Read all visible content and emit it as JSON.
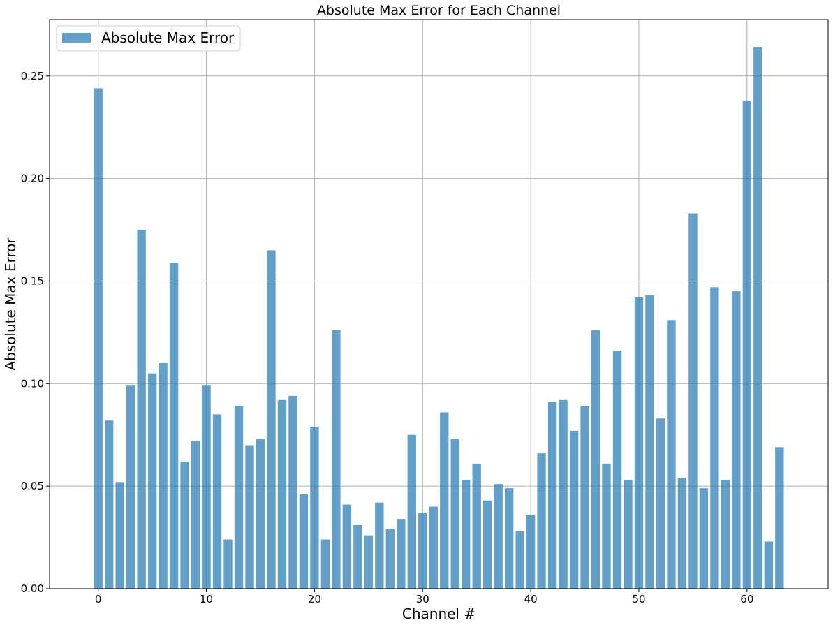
{
  "colors": {
    "bar": "#1f77b4",
    "bar_opacity": 0.7,
    "grid": "#b0b0b0"
  },
  "chart_data": {
    "type": "bar",
    "title": "Absolute Max Error for Each Channel",
    "xlabel": "Channel #",
    "ylabel": "Absolute Max Error",
    "legend": {
      "label": "Absolute Max Error",
      "position": "top-left"
    },
    "grid": true,
    "xlim": [
      -4.5,
      67.5
    ],
    "ylim": [
      0,
      0.2775
    ],
    "xticks": [
      0,
      10,
      20,
      30,
      40,
      50,
      60
    ],
    "xtick_labels": [
      "0",
      "10",
      "20",
      "30",
      "40",
      "50",
      "60"
    ],
    "yticks": [
      0,
      0.05,
      0.1,
      0.15,
      0.2,
      0.25
    ],
    "ytick_labels": [
      "0.00",
      "0.05",
      "0.10",
      "0.15",
      "0.20",
      "0.25"
    ],
    "categories": [
      0,
      1,
      2,
      3,
      4,
      5,
      6,
      7,
      8,
      9,
      10,
      11,
      12,
      13,
      14,
      15,
      16,
      17,
      18,
      19,
      20,
      21,
      22,
      23,
      24,
      25,
      26,
      27,
      28,
      29,
      30,
      31,
      32,
      33,
      34,
      35,
      36,
      37,
      38,
      39,
      40,
      41,
      42,
      43,
      44,
      45,
      46,
      47,
      48,
      49,
      50,
      51,
      52,
      53,
      54,
      55,
      56,
      57,
      58,
      59,
      60,
      61,
      62,
      63
    ],
    "values": [
      0.244,
      0.082,
      0.052,
      0.099,
      0.175,
      0.105,
      0.11,
      0.159,
      0.062,
      0.072,
      0.099,
      0.085,
      0.024,
      0.089,
      0.07,
      0.073,
      0.165,
      0.092,
      0.094,
      0.046,
      0.079,
      0.024,
      0.126,
      0.041,
      0.031,
      0.026,
      0.042,
      0.029,
      0.034,
      0.075,
      0.037,
      0.04,
      0.086,
      0.073,
      0.053,
      0.061,
      0.043,
      0.051,
      0.049,
      0.028,
      0.036,
      0.066,
      0.091,
      0.092,
      0.077,
      0.089,
      0.126,
      0.061,
      0.116,
      0.053,
      0.142,
      0.143,
      0.083,
      0.131,
      0.054,
      0.183,
      0.049,
      0.147,
      0.053,
      0.145,
      0.238,
      0.264,
      0.023,
      0.069
    ]
  }
}
